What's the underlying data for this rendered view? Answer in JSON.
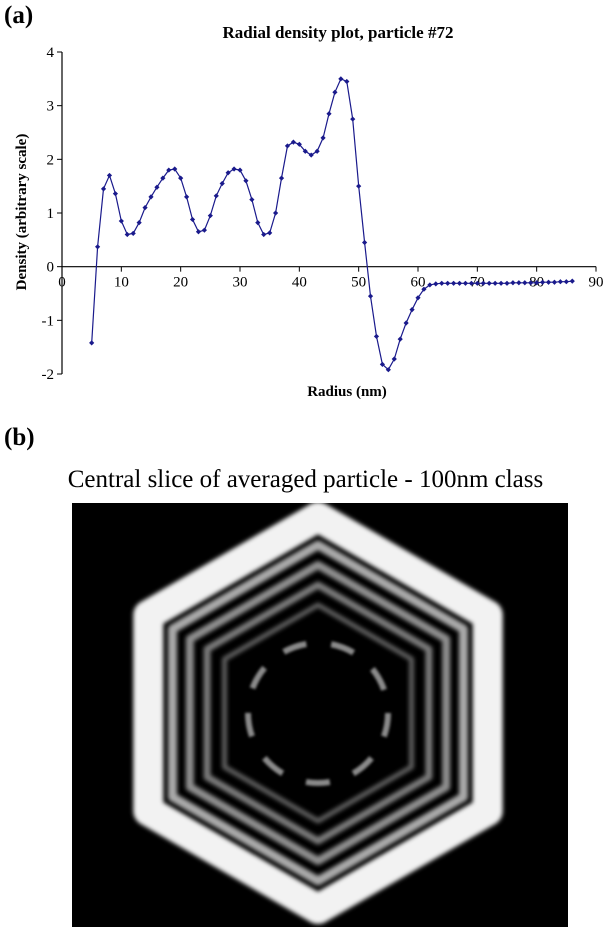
{
  "panel_a": {
    "label": "(a)"
  },
  "panel_b": {
    "label": "(b)",
    "title": "Central slice of averaged particle - 100nm class"
  },
  "chart_data": {
    "type": "line",
    "title": "Radial density plot, particle #72",
    "xlabel": "Radius (nm)",
    "ylabel": "Density (arbitrary scale)",
    "xlim": [
      0,
      90
    ],
    "ylim": [
      -2,
      4
    ],
    "x_ticks": [
      0,
      10,
      20,
      30,
      40,
      50,
      60,
      70,
      80,
      90
    ],
    "y_ticks": [
      -2,
      -1,
      0,
      1,
      2,
      3,
      4
    ],
    "grid": false,
    "legend": "none",
    "series_color": "#1a1a8c",
    "x": [
      5,
      6,
      7,
      8,
      9,
      10,
      11,
      12,
      13,
      14,
      15,
      16,
      17,
      18,
      19,
      20,
      21,
      22,
      23,
      24,
      25,
      26,
      27,
      28,
      29,
      30,
      31,
      32,
      33,
      34,
      35,
      36,
      37,
      38,
      39,
      40,
      41,
      42,
      43,
      44,
      45,
      46,
      47,
      48,
      49,
      50,
      51,
      52,
      53,
      54,
      55,
      56,
      57,
      58,
      59,
      60,
      61,
      62,
      63,
      64,
      65,
      66,
      67,
      68,
      69,
      70,
      71,
      72,
      73,
      74,
      75,
      76,
      77,
      78,
      79,
      80,
      81,
      82,
      83,
      84,
      85,
      86
    ],
    "y": [
      -1.42,
      0.37,
      1.45,
      1.7,
      1.36,
      0.85,
      0.6,
      0.62,
      0.82,
      1.1,
      1.3,
      1.48,
      1.65,
      1.8,
      1.82,
      1.65,
      1.3,
      0.88,
      0.65,
      0.68,
      0.95,
      1.32,
      1.55,
      1.75,
      1.82,
      1.8,
      1.6,
      1.25,
      0.82,
      0.6,
      0.63,
      1.0,
      1.65,
      2.25,
      2.32,
      2.28,
      2.15,
      2.08,
      2.15,
      2.4,
      2.85,
      3.25,
      3.5,
      3.45,
      2.75,
      1.5,
      0.45,
      -0.55,
      -1.3,
      -1.82,
      -1.92,
      -1.72,
      -1.35,
      -1.05,
      -0.8,
      -0.58,
      -0.42,
      -0.34,
      -0.32,
      -0.31,
      -0.31,
      -0.31,
      -0.31,
      -0.31,
      -0.31,
      -0.31,
      -0.31,
      -0.31,
      -0.31,
      -0.31,
      -0.31,
      -0.3,
      -0.3,
      -0.3,
      -0.3,
      -0.3,
      -0.29,
      -0.29,
      -0.29,
      -0.28,
      -0.28,
      -0.27
    ]
  }
}
